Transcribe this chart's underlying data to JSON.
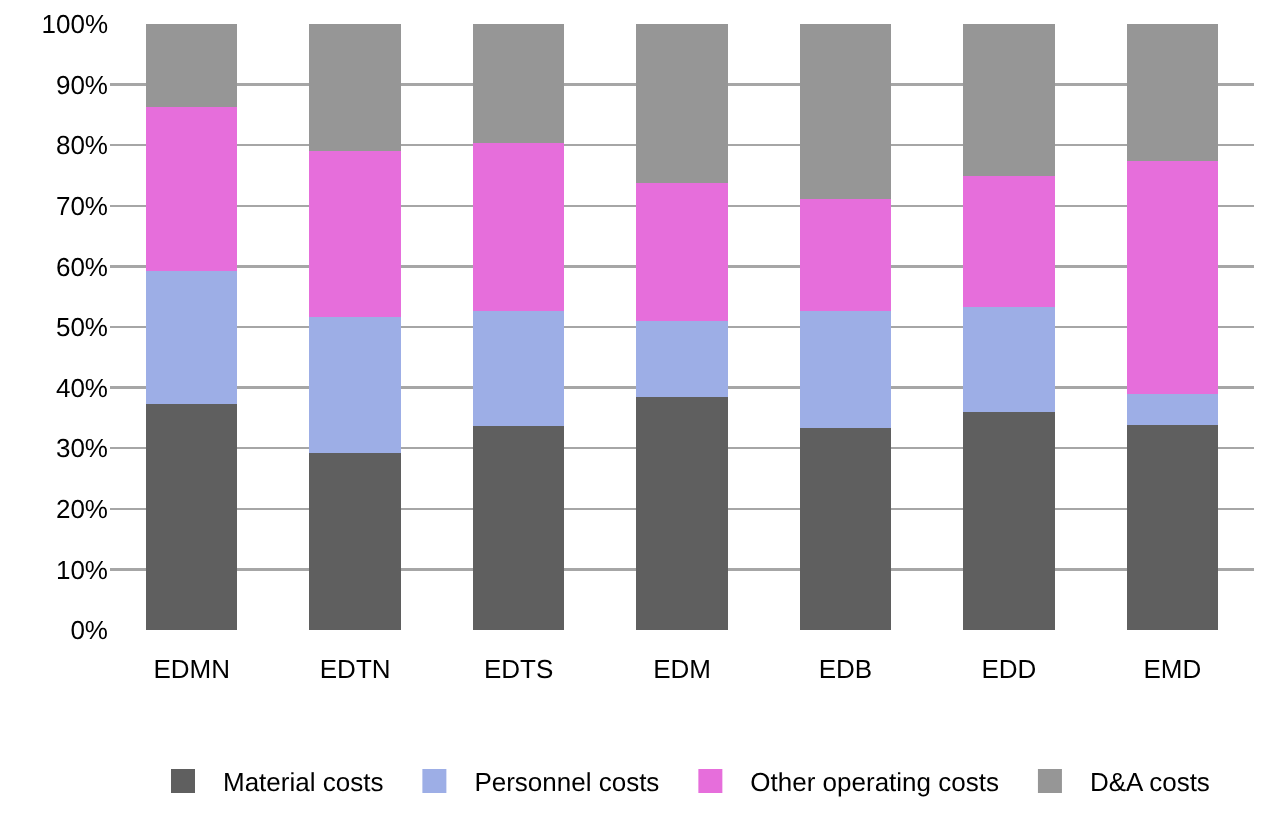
{
  "chart_data": {
    "type": "bar",
    "stacked": true,
    "categories": [
      "EDMN",
      "EDTN",
      "EDTS",
      "EDM",
      "EDB",
      "EDD",
      "EMD"
    ],
    "series": [
      {
        "name": "Material costs",
        "color": "#5f5f5f",
        "values": [
          37.3,
          29.2,
          33.7,
          38.5,
          33.4,
          36,
          33.8
        ]
      },
      {
        "name": "Personnel costs",
        "color": "#9daee6",
        "values": [
          21.9,
          22.4,
          18.9,
          12.5,
          19.2,
          17.3,
          5.1
        ]
      },
      {
        "name": "Other operating costs",
        "color": "#e66edb",
        "values": [
          27.1,
          27.5,
          27.7,
          22.8,
          18.5,
          21.6,
          38.5
        ]
      },
      {
        "name": "D&A costs",
        "color": "#969696",
        "values": [
          13.7,
          20.9,
          19.7,
          26.2,
          28.9,
          25.1,
          22.6
        ]
      }
    ],
    "ylim": [
      0,
      100
    ],
    "yticks": [
      {
        "value": 0,
        "label": "0%"
      },
      {
        "value": 10,
        "label": "10%"
      },
      {
        "value": 20,
        "label": "20%"
      },
      {
        "value": 30,
        "label": "30%"
      },
      {
        "value": 40,
        "label": "40%"
      },
      {
        "value": 50,
        "label": "50%"
      },
      {
        "value": 60,
        "label": "60%"
      },
      {
        "value": 70,
        "label": "70%"
      },
      {
        "value": 80,
        "label": "80%"
      },
      {
        "value": 90,
        "label": "90%"
      },
      {
        "value": 100,
        "label": "100%"
      }
    ],
    "grid": "y",
    "legend": "bottom"
  }
}
